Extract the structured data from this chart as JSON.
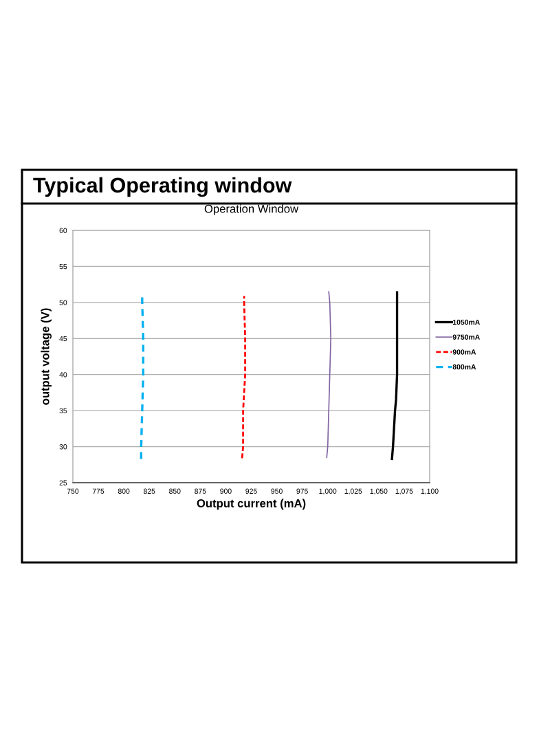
{
  "chart_data": {
    "type": "line",
    "title": "Typical Operating window",
    "subtitle": "Operation Window",
    "xlabel": "Output current (mA)",
    "ylabel": "output voltage (V)",
    "xlim": [
      750,
      1100
    ],
    "xticks": [
      750,
      775,
      800,
      825,
      850,
      875,
      900,
      925,
      950,
      975,
      {
        "value": 1000,
        "label": "1,000"
      },
      {
        "value": 1025,
        "label": "1,025"
      },
      {
        "value": 1050,
        "label": "1,050"
      },
      {
        "value": 1075,
        "label": "1,075"
      },
      {
        "value": 1100,
        "label": "1,100"
      }
    ],
    "ylim": [
      25,
      60
    ],
    "yticks": [
      25,
      30,
      35,
      40,
      45,
      50,
      55,
      60
    ],
    "grid": "y",
    "legend": "right",
    "series": [
      {
        "name": "1050mA",
        "color": "#000000",
        "line_style": "solid",
        "x": [
          1063,
          1064,
          1066,
          1067,
          1068,
          1068,
          1068,
          1068
        ],
        "values": [
          28.3,
          30,
          35,
          36.5,
          40,
          45,
          50,
          51.4
        ]
      },
      {
        "name": "9750mA",
        "color": "#8064a2",
        "line_style": "solid",
        "x": [
          999,
          1000,
          1001,
          1002,
          1003,
          1002,
          1001
        ],
        "values": [
          28.5,
          30,
          35,
          40,
          45,
          50,
          51.5
        ]
      },
      {
        "name": "900mA",
        "color": "#ff0000",
        "line_style": "dashed",
        "x": [
          916,
          917,
          917,
          919,
          919,
          918,
          918
        ],
        "values": [
          28.4,
          30,
          35,
          40,
          45,
          50,
          50.9
        ]
      },
      {
        "name": "800mA",
        "color": "#00b0f0",
        "line_style": "dashed",
        "x": [
          817,
          817,
          818,
          819,
          819,
          818,
          818
        ],
        "values": [
          28.3,
          30,
          35,
          40,
          45,
          50,
          50.7
        ]
      }
    ]
  }
}
